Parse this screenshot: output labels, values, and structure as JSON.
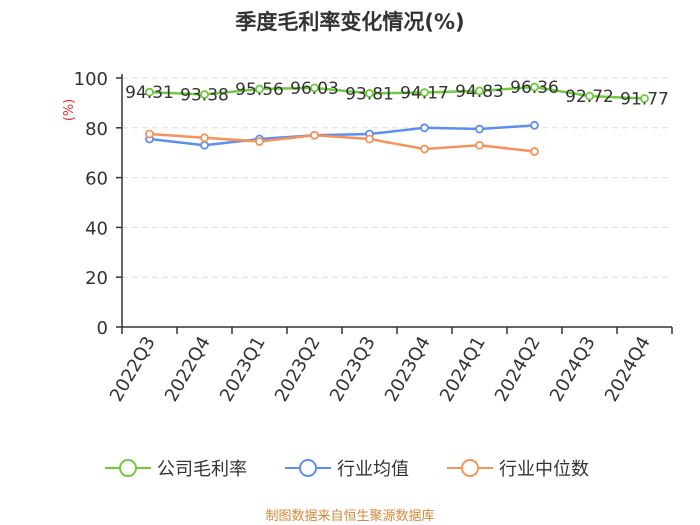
{
  "chart_data": {
    "type": "line",
    "title": "季度毛利率变化情况(%)",
    "ylabel": "(%)",
    "xlabel": "",
    "ylim": [
      0,
      100
    ],
    "yticks": [
      0,
      20,
      40,
      60,
      80,
      100
    ],
    "categories": [
      "2022Q3",
      "2022Q4",
      "2023Q1",
      "2023Q2",
      "2023Q3",
      "2023Q4",
      "2024Q1",
      "2024Q2",
      "2024Q3",
      "2024Q4"
    ],
    "grid": true,
    "legend_position": "bottom",
    "series": [
      {
        "name": "公司毛利率",
        "color": "#6ecb3c",
        "values": [
          94.31,
          93.38,
          95.56,
          96.03,
          93.81,
          94.17,
          94.83,
          96.36,
          92.72,
          91.77
        ],
        "labels": [
          "94.31",
          "93.38",
          "95.56",
          "96.03",
          "93.81",
          "94.17",
          "94.83",
          "96.36",
          "92.72",
          "91.77"
        ]
      },
      {
        "name": "行业均值",
        "color": "#5b8ff0",
        "values": [
          75.5,
          73,
          75.5,
          77,
          77.5,
          80,
          79.5,
          81,
          null,
          null
        ]
      },
      {
        "name": "行业中位数",
        "color": "#f5935a",
        "values": [
          77.5,
          76,
          74.5,
          77,
          75.5,
          71.5,
          73,
          70.5,
          null,
          null
        ]
      }
    ]
  },
  "source": "制图数据来自恒生聚源数据库"
}
